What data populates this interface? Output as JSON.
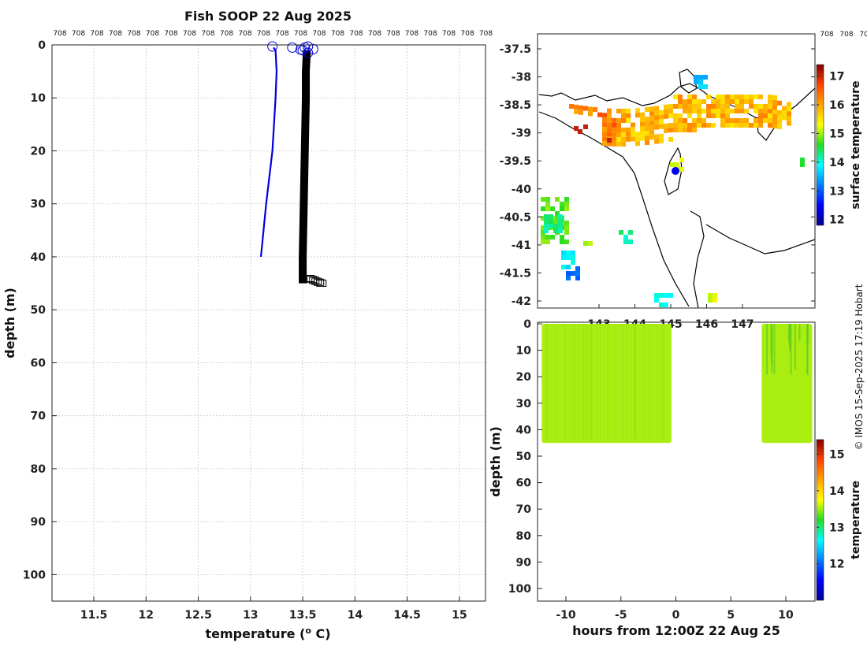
{
  "title": "Fish SOOP 22 Aug 2025",
  "credit": "© IMOS 15-Sep-2025 17:19 Hobart",
  "chart_data": [
    {
      "name": "profile",
      "type": "line",
      "xlabel": "temperature (",
      "xlabel_unit": "o",
      "xlabel_end": " C)",
      "ylabel": "depth (m)",
      "xlim": [
        11.1,
        15.25
      ],
      "ylim": [
        0,
        105
      ],
      "yreversed": true,
      "xticks": [
        "11.5",
        "12",
        "12.5",
        "13",
        "13.5",
        "14",
        "14.5",
        "15"
      ],
      "yticks": [
        "0",
        "10",
        "20",
        "30",
        "40",
        "50",
        "60",
        "70",
        "80",
        "90",
        "100"
      ],
      "top_tick_label": "708",
      "grid": true,
      "series": [
        {
          "color": "#0000dd",
          "x": [
            13.1,
            13.15,
            13.18,
            13.21,
            13.24,
            13.25,
            13.24,
            13.22
          ],
          "y": [
            40,
            30,
            25,
            20,
            10,
            5,
            1,
            0.5
          ]
        },
        {
          "color": "#000000",
          "x": [
            13.5,
            13.5,
            13.51,
            13.52,
            13.53,
            13.53,
            13.54
          ],
          "y": [
            45,
            40,
            30,
            20,
            10,
            5,
            1
          ]
        }
      ],
      "circles": [
        {
          "color": "#0000dd",
          "x": [
            13.21,
            13.4,
            13.5,
            13.55,
            13.6,
            13.55,
            13.52,
            13.48
          ],
          "y": [
            0.3,
            0.5,
            1,
            1.5,
            0.8,
            0.3,
            0.5,
            0.9
          ]
        }
      ]
    },
    {
      "name": "map",
      "type": "heatmap",
      "colorbar_label": "surface temperature",
      "colorbar_ticks": [
        "12",
        "13",
        "14",
        "15",
        "16",
        "17"
      ],
      "colorbar_range": [
        11.8,
        17.4
      ],
      "yticks": [
        "-37.5",
        "-38",
        "-38.5",
        "-39",
        "-39.5",
        "-40",
        "-40.5",
        "-41",
        "-41.5",
        "-42"
      ],
      "xticks": [
        "143",
        "144",
        "145",
        "146",
        "147"
      ],
      "top_tick_label": "708",
      "marker_color": "#0000ff"
    },
    {
      "name": "section",
      "type": "heatmap",
      "xlabel": "hours from 12:00Z 22 Aug 25",
      "ylabel": "depth (m)",
      "xticks": [
        "-10",
        "-5",
        "0",
        "5",
        "10"
      ],
      "yticks": [
        "0",
        "10",
        "20",
        "30",
        "40",
        "50",
        "60",
        "70",
        "80",
        "90",
        "100"
      ],
      "colorbar_label": "temperature",
      "colorbar_ticks": [
        "12",
        "13",
        "14",
        "15"
      ],
      "colorbar_range": [
        11.0,
        15.4
      ],
      "fill_color": "#aaee11",
      "segments": [
        {
          "x_start": -12.2,
          "x_end": -0.4,
          "depth_max": 45
        },
        {
          "x_start": 7.8,
          "x_end": 12.4,
          "depth_max": 45
        }
      ]
    }
  ]
}
